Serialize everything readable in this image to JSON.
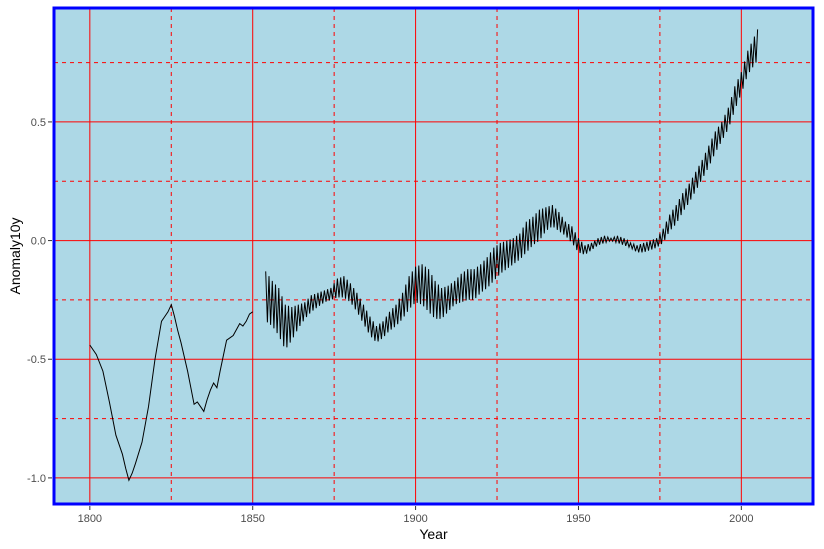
{
  "chart_data": {
    "type": "line",
    "title": "",
    "xlabel": "Year",
    "ylabel": "Anomaly10y",
    "xlim": [
      1789,
      2022
    ],
    "ylim": [
      -1.11,
      0.98
    ],
    "x_ticks": [
      1800,
      1850,
      1900,
      1950,
      2000
    ],
    "x_tick_labels": [
      "1800",
      "1850",
      "1900",
      "1950",
      "2000"
    ],
    "y_ticks": [
      -1.0,
      -0.5,
      0.0,
      0.5
    ],
    "y_tick_labels": [
      "-1.0",
      "-0.5",
      "0.0",
      "0.5"
    ],
    "major_grid_x": [
      1800,
      1850,
      1900,
      1950,
      2000
    ],
    "minor_grid_x": [
      1825,
      1875,
      1925,
      1975
    ],
    "major_grid_y": [
      -1.0,
      -0.5,
      0.0,
      0.5
    ],
    "minor_grid_y": [
      -0.75,
      -0.25,
      0.25,
      0.75
    ],
    "colors": {
      "panel_background": "#add8e6",
      "panel_border": "#0000ff",
      "grid": "#ff0000",
      "line": "#000000"
    },
    "smooth_segment": {
      "x": [
        1800,
        1802,
        1804,
        1806,
        1808,
        1810,
        1811,
        1812,
        1813,
        1814,
        1816,
        1818,
        1820,
        1822,
        1823,
        1824,
        1825,
        1826,
        1827,
        1828,
        1830,
        1832,
        1833,
        1834,
        1835,
        1836,
        1837,
        1838,
        1839,
        1840,
        1842,
        1844,
        1846,
        1847,
        1848,
        1849,
        1850
      ],
      "y": [
        -0.44,
        -0.48,
        -0.55,
        -0.68,
        -0.82,
        -0.9,
        -0.96,
        -1.01,
        -0.98,
        -0.94,
        -0.85,
        -0.7,
        -0.5,
        -0.34,
        -0.32,
        -0.3,
        -0.27,
        -0.32,
        -0.38,
        -0.43,
        -0.55,
        -0.69,
        -0.68,
        -0.7,
        -0.72,
        -0.67,
        -0.63,
        -0.6,
        -0.62,
        -0.55,
        -0.42,
        -0.4,
        -0.35,
        -0.36,
        -0.34,
        -0.31,
        -0.3
      ]
    },
    "series": [
      {
        "values_upper": [
          [
            1854,
            -0.13
          ],
          [
            1856,
            -0.17
          ],
          [
            1858,
            -0.2
          ],
          [
            1860,
            -0.27
          ],
          [
            1862,
            -0.28
          ],
          [
            1864,
            -0.27
          ],
          [
            1866,
            -0.26
          ],
          [
            1868,
            -0.23
          ],
          [
            1870,
            -0.22
          ],
          [
            1872,
            -0.21
          ],
          [
            1874,
            -0.2
          ],
          [
            1876,
            -0.16
          ],
          [
            1878,
            -0.15
          ],
          [
            1880,
            -0.18
          ],
          [
            1882,
            -0.22
          ],
          [
            1884,
            -0.27
          ],
          [
            1886,
            -0.32
          ],
          [
            1888,
            -0.36
          ],
          [
            1890,
            -0.34
          ],
          [
            1892,
            -0.3
          ],
          [
            1894,
            -0.27
          ],
          [
            1896,
            -0.22
          ],
          [
            1898,
            -0.15
          ],
          [
            1900,
            -0.11
          ],
          [
            1902,
            -0.1
          ],
          [
            1904,
            -0.12
          ],
          [
            1906,
            -0.17
          ],
          [
            1908,
            -0.2
          ],
          [
            1910,
            -0.19
          ],
          [
            1912,
            -0.17
          ],
          [
            1914,
            -0.14
          ],
          [
            1916,
            -0.12
          ],
          [
            1918,
            -0.12
          ],
          [
            1920,
            -0.1
          ],
          [
            1922,
            -0.07
          ],
          [
            1924,
            -0.03
          ],
          [
            1926,
            -0.01
          ],
          [
            1928,
            0.0
          ],
          [
            1930,
            0.01
          ],
          [
            1932,
            0.03
          ],
          [
            1934,
            0.08
          ],
          [
            1936,
            0.1
          ],
          [
            1938,
            0.13
          ],
          [
            1940,
            0.14
          ],
          [
            1942,
            0.15
          ],
          [
            1944,
            0.12
          ],
          [
            1946,
            0.08
          ],
          [
            1948,
            0.06
          ],
          [
            1950,
            0.01
          ],
          [
            1952,
            -0.02
          ],
          [
            1954,
            -0.01
          ],
          [
            1956,
            0.01
          ],
          [
            1958,
            0.02
          ],
          [
            1960,
            0.01
          ],
          [
            1962,
            0.02
          ],
          [
            1964,
            0.01
          ],
          [
            1966,
            -0.01
          ],
          [
            1968,
            -0.02
          ],
          [
            1970,
            -0.01
          ],
          [
            1972,
            0.0
          ],
          [
            1974,
            0.01
          ],
          [
            1976,
            0.05
          ],
          [
            1978,
            0.11
          ],
          [
            1980,
            0.15
          ],
          [
            1982,
            0.2
          ],
          [
            1984,
            0.24
          ],
          [
            1986,
            0.29
          ],
          [
            1988,
            0.34
          ],
          [
            1990,
            0.4
          ],
          [
            1992,
            0.46
          ],
          [
            1994,
            0.5
          ],
          [
            1996,
            0.56
          ],
          [
            1998,
            0.65
          ],
          [
            2000,
            0.71
          ],
          [
            2002,
            0.8
          ],
          [
            2004,
            0.86
          ],
          [
            2005,
            0.89
          ]
        ],
        "values_lower": [
          [
            1854,
            -0.34
          ],
          [
            1856,
            -0.36
          ],
          [
            1858,
            -0.4
          ],
          [
            1860,
            -0.46
          ],
          [
            1862,
            -0.42
          ],
          [
            1864,
            -0.37
          ],
          [
            1866,
            -0.33
          ],
          [
            1868,
            -0.3
          ],
          [
            1870,
            -0.28
          ],
          [
            1872,
            -0.26
          ],
          [
            1874,
            -0.25
          ],
          [
            1876,
            -0.24
          ],
          [
            1878,
            -0.24
          ],
          [
            1880,
            -0.26
          ],
          [
            1882,
            -0.3
          ],
          [
            1884,
            -0.35
          ],
          [
            1886,
            -0.4
          ],
          [
            1888,
            -0.43
          ],
          [
            1890,
            -0.41
          ],
          [
            1892,
            -0.38
          ],
          [
            1894,
            -0.36
          ],
          [
            1896,
            -0.33
          ],
          [
            1898,
            -0.29
          ],
          [
            1900,
            -0.26
          ],
          [
            1902,
            -0.27
          ],
          [
            1904,
            -0.3
          ],
          [
            1906,
            -0.33
          ],
          [
            1908,
            -0.33
          ],
          [
            1910,
            -0.3
          ],
          [
            1912,
            -0.27
          ],
          [
            1914,
            -0.26
          ],
          [
            1916,
            -0.25
          ],
          [
            1918,
            -0.25
          ],
          [
            1920,
            -0.22
          ],
          [
            1922,
            -0.2
          ],
          [
            1924,
            -0.17
          ],
          [
            1926,
            -0.14
          ],
          [
            1928,
            -0.12
          ],
          [
            1930,
            -0.1
          ],
          [
            1932,
            -0.08
          ],
          [
            1934,
            -0.05
          ],
          [
            1936,
            -0.02
          ],
          [
            1938,
            0.0
          ],
          [
            1940,
            0.04
          ],
          [
            1942,
            0.06
          ],
          [
            1944,
            0.04
          ],
          [
            1946,
            0.02
          ],
          [
            1948,
            -0.01
          ],
          [
            1950,
            -0.05
          ],
          [
            1952,
            -0.06
          ],
          [
            1954,
            -0.04
          ],
          [
            1956,
            -0.02
          ],
          [
            1958,
            -0.01
          ],
          [
            1960,
            0.0
          ],
          [
            1962,
            -0.01
          ],
          [
            1964,
            -0.02
          ],
          [
            1966,
            -0.03
          ],
          [
            1968,
            -0.05
          ],
          [
            1970,
            -0.05
          ],
          [
            1972,
            -0.04
          ],
          [
            1974,
            -0.03
          ],
          [
            1976,
            -0.01
          ],
          [
            1978,
            0.04
          ],
          [
            1980,
            0.07
          ],
          [
            1982,
            0.12
          ],
          [
            1984,
            0.16
          ],
          [
            1986,
            0.21
          ],
          [
            1988,
            0.26
          ],
          [
            1990,
            0.31
          ],
          [
            1992,
            0.37
          ],
          [
            1994,
            0.42
          ],
          [
            1996,
            0.47
          ],
          [
            1998,
            0.55
          ],
          [
            2000,
            0.62
          ],
          [
            2002,
            0.7
          ],
          [
            2004,
            0.74
          ],
          [
            2005,
            0.76
          ]
        ]
      }
    ]
  }
}
